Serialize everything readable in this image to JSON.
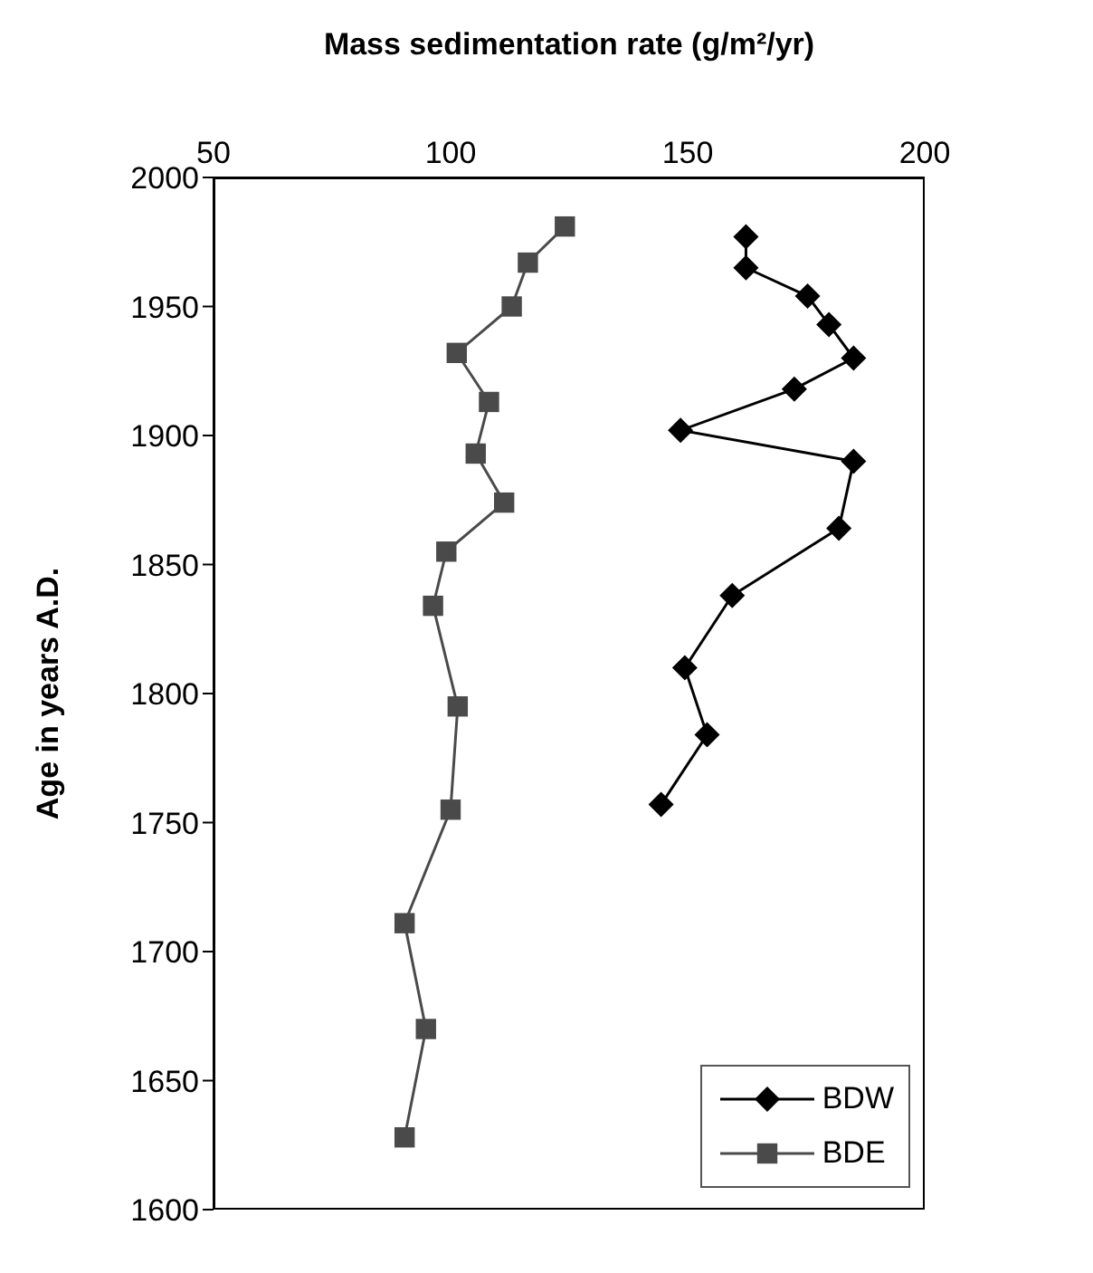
{
  "chart_data": {
    "type": "line",
    "xlabel": "Mass sedimentation rate (g/m²/yr)",
    "ylabel": "Age in years A.D.",
    "xlim": [
      50,
      200
    ],
    "xticks": [
      50,
      100,
      150,
      200
    ],
    "ylim": [
      1600,
      2000
    ],
    "yticks": [
      1600,
      1650,
      1700,
      1750,
      1800,
      1850,
      1900,
      1950,
      2000
    ],
    "legend": "bottom right",
    "line_style": "solid",
    "series": [
      {
        "name": "BDW",
        "color": "#000000",
        "marker": "diamond",
        "x": [
          162.3,
          162.3,
          175.3,
          179.8,
          185,
          172.5,
          148.5,
          185,
          181.9,
          159.4,
          149.4,
          154.1,
          144.4
        ],
        "values": [
          1977,
          1965,
          1954,
          1943,
          1930,
          1918,
          1902,
          1890,
          1864,
          1838,
          1810,
          1784,
          1757
        ]
      },
      {
        "name": "BDE",
        "color": "#4a4a4a",
        "marker": "square",
        "x": [
          124.1,
          116.3,
          112.9,
          101.3,
          108.1,
          105.3,
          111.3,
          99.1,
          96.3,
          101.5,
          100,
          90.3,
          94.8,
          90.3
        ],
        "values": [
          1981,
          1967,
          1950,
          1932,
          1913,
          1893,
          1874,
          1855,
          1834,
          1795,
          1755,
          1711,
          1670,
          1628
        ]
      }
    ]
  }
}
